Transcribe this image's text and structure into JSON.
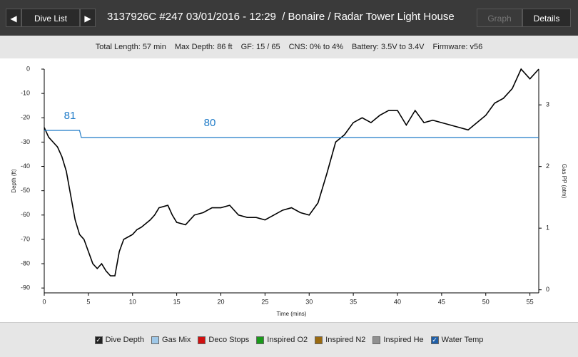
{
  "header": {
    "nav_button": "Dive List",
    "title": "3137926C #247 03/01/2016 - 12:29  / Bonaire / Radar Tower Light House",
    "tabs": [
      "Graph",
      "Details"
    ]
  },
  "summary": [
    "Total Length: 57 min",
    "Max Depth: 86 ft",
    "GF: 15 / 65",
    "CNS: 0% to 4%",
    "Battery: 3.5V to 3.4V",
    "Firmware: v56"
  ],
  "chart_data": {
    "type": "line",
    "x_label": "Time (mins)",
    "y_label": "Depth (ft)",
    "y2_label": "Gas PP (atm)",
    "xlim": [
      0,
      56
    ],
    "xticks": [
      0,
      5,
      10,
      15,
      20,
      25,
      30,
      35,
      40,
      45,
      50,
      55
    ],
    "ylim": [
      -92,
      0
    ],
    "yticks": [
      0,
      -10,
      -20,
      -30,
      -40,
      -50,
      -60,
      -70,
      -80,
      -90
    ],
    "y2lim": [
      -0.05,
      3.58
    ],
    "y2ticks": [
      0,
      1,
      2,
      3
    ],
    "series": [
      {
        "name": "Dive Depth",
        "color": "#000000",
        "x": [
          0,
          0.5,
          1,
          1.5,
          2,
          2.5,
          3,
          3.5,
          4,
          4.5,
          5,
          5.5,
          6,
          6.5,
          7,
          7.5,
          8,
          8.5,
          9,
          9.5,
          10,
          10.5,
          11,
          12,
          12.5,
          13,
          14,
          14.5,
          15,
          16,
          17,
          18,
          19,
          20,
          21,
          22,
          23,
          24,
          25,
          26,
          27,
          28,
          29,
          30,
          31,
          32,
          33,
          34,
          35,
          36,
          37,
          38,
          39,
          40,
          41,
          42,
          43,
          44,
          45,
          46,
          47,
          48,
          49,
          50,
          51,
          52,
          53,
          54,
          55,
          56
        ],
        "values": [
          -24,
          -28,
          -30,
          -32,
          -36,
          -42,
          -52,
          -62,
          -68,
          -70,
          -75,
          -80,
          -82,
          -80,
          -83,
          -85,
          -85,
          -75,
          -70,
          -69,
          -68,
          -66,
          -65,
          -62,
          -60,
          -57,
          -56,
          -60,
          -63,
          -64,
          -60,
          -59,
          -57,
          -57,
          -56,
          -60,
          -61,
          -61,
          -62,
          -60,
          -58,
          -57,
          -59,
          -60,
          -55,
          -43,
          -30,
          -27,
          -22,
          -20,
          -22,
          -19,
          -17,
          -17,
          -23,
          -17,
          -22,
          -21,
          -22,
          -23,
          -24,
          -25,
          -22,
          -19,
          -14,
          -12,
          -8,
          0,
          -4,
          0
        ]
      },
      {
        "name": "Water Temp",
        "color": "#1f7bc8",
        "x": [
          0,
          4,
          4.2,
          56
        ],
        "values": [
          81,
          81,
          80,
          80
        ]
      }
    ]
  },
  "legend": [
    {
      "name": "Dive Depth",
      "color": "#222222",
      "checked": true
    },
    {
      "name": "Gas Mix",
      "color": "#9fc8e8",
      "checked": false
    },
    {
      "name": "Deco Stops",
      "color": "#d01010",
      "checked": false
    },
    {
      "name": "Inspired O2",
      "color": "#1a9a1a",
      "checked": false
    },
    {
      "name": "Inspired N2",
      "color": "#9a6a10",
      "checked": false
    },
    {
      "name": "Inspired He",
      "color": "#909090",
      "checked": false
    },
    {
      "name": "Water Temp",
      "color": "#1f5fa8",
      "checked": true
    }
  ]
}
